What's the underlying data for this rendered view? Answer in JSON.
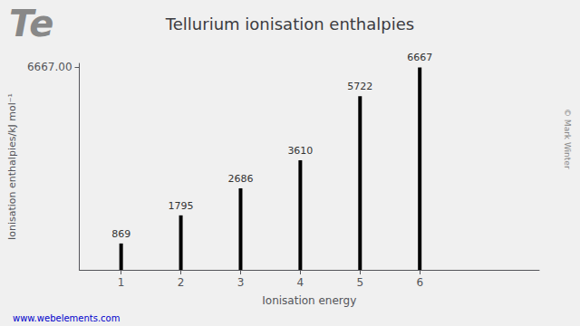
{
  "chart_data": {
    "type": "bar",
    "title": "Tellurium ionisation enthalpies",
    "xlabel": "Ionisation energy",
    "ylabel": "Ionisation enthalpies/kJ mol⁻¹",
    "x": [
      1,
      2,
      3,
      4,
      5,
      6
    ],
    "values": [
      869,
      1795,
      2686,
      3610,
      5722,
      6667
    ],
    "color": "#000000",
    "xlim": [
      0.3,
      8.0
    ],
    "xticks": [
      1,
      2,
      3,
      4,
      5,
      6
    ],
    "ylim": [
      0,
      6800.34
    ],
    "yticks": [
      {
        "value": 6667,
        "label": "6667.00"
      }
    ],
    "grid": false,
    "data_labels": true,
    "annotations": [
      "Te",
      "www.webelements.com",
      "© Mark Winter"
    ]
  }
}
